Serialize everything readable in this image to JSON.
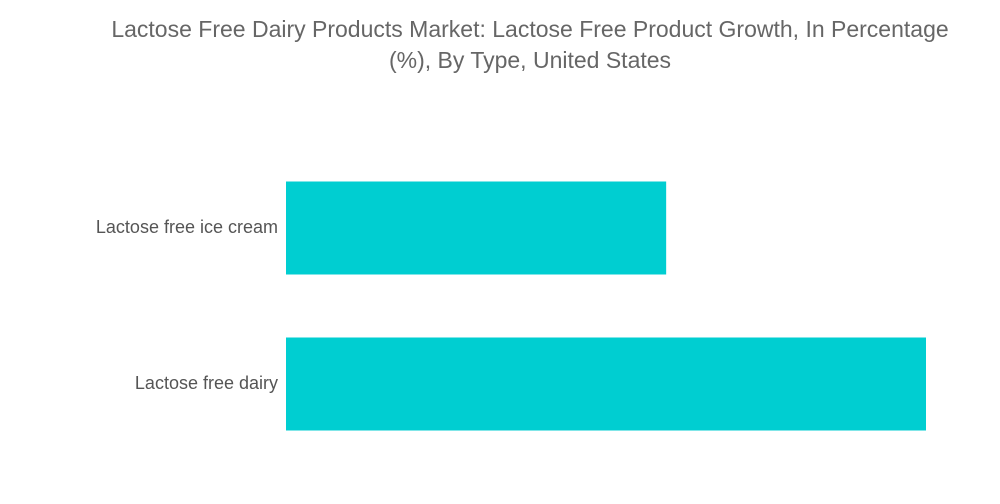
{
  "chart_data": {
    "type": "bar",
    "orientation": "horizontal",
    "title": "Lactose Free Dairy Products Market: Lactose Free Product Growth, In Percentage (%), By Type, United States",
    "categories": [
      "Lactose free ice cream",
      "Lactose free dairy"
    ],
    "series": [
      {
        "values": [
          59.4,
          100
        ]
      }
    ],
    "xlim": [
      0,
      100
    ],
    "grid": false,
    "legend": "none",
    "bar_color": "#00CED1",
    "axes_visible": false
  }
}
